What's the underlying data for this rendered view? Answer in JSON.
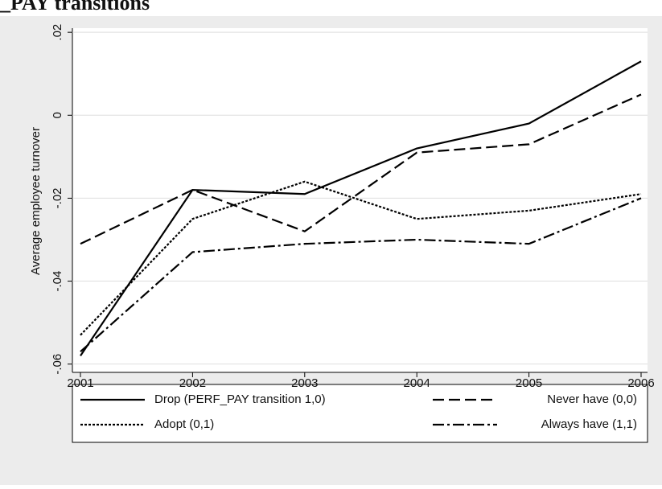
{
  "chart_data": {
    "type": "line",
    "title": "_PAY transitions",
    "y_label": "Average employee turnover",
    "x": [
      2001,
      2002,
      2003,
      2004,
      2005,
      2006
    ],
    "xlim": [
      2001,
      2006
    ],
    "xticks": [
      2001,
      2002,
      2003,
      2004,
      2005,
      2006
    ],
    "ylim": [
      -0.062,
      0.021
    ],
    "yticks": [
      {
        "value": -0.06,
        "label": "-.06"
      },
      {
        "value": -0.04,
        "label": "-.04"
      },
      {
        "value": -0.02,
        "label": "-.02"
      },
      0,
      {
        "value": 0.02,
        "label": ".02"
      }
    ],
    "grid": true,
    "legend": "bottom",
    "series": [
      {
        "name": "Drop (PERF_PAY transition 1,0)",
        "color": "#000000",
        "line_style": "solid",
        "values": [
          -0.058,
          -0.018,
          -0.019,
          -0.008,
          -0.002,
          0.013
        ]
      },
      {
        "name": "Never have (0,0)",
        "color": "#000000",
        "line_style": "dashed",
        "values": [
          -0.031,
          -0.018,
          -0.028,
          -0.009,
          -0.007,
          0.005
        ]
      },
      {
        "name": "Adopt (0,1)",
        "color": "#000000",
        "line_style": "dotted",
        "values": [
          -0.053,
          -0.025,
          -0.016,
          -0.025,
          -0.023,
          -0.019
        ]
      },
      {
        "name": "Always have (1,1)",
        "color": "#000000",
        "line_style": "dashdot",
        "values": [
          -0.057,
          -0.033,
          -0.031,
          -0.03,
          -0.031,
          -0.02
        ]
      }
    ]
  }
}
